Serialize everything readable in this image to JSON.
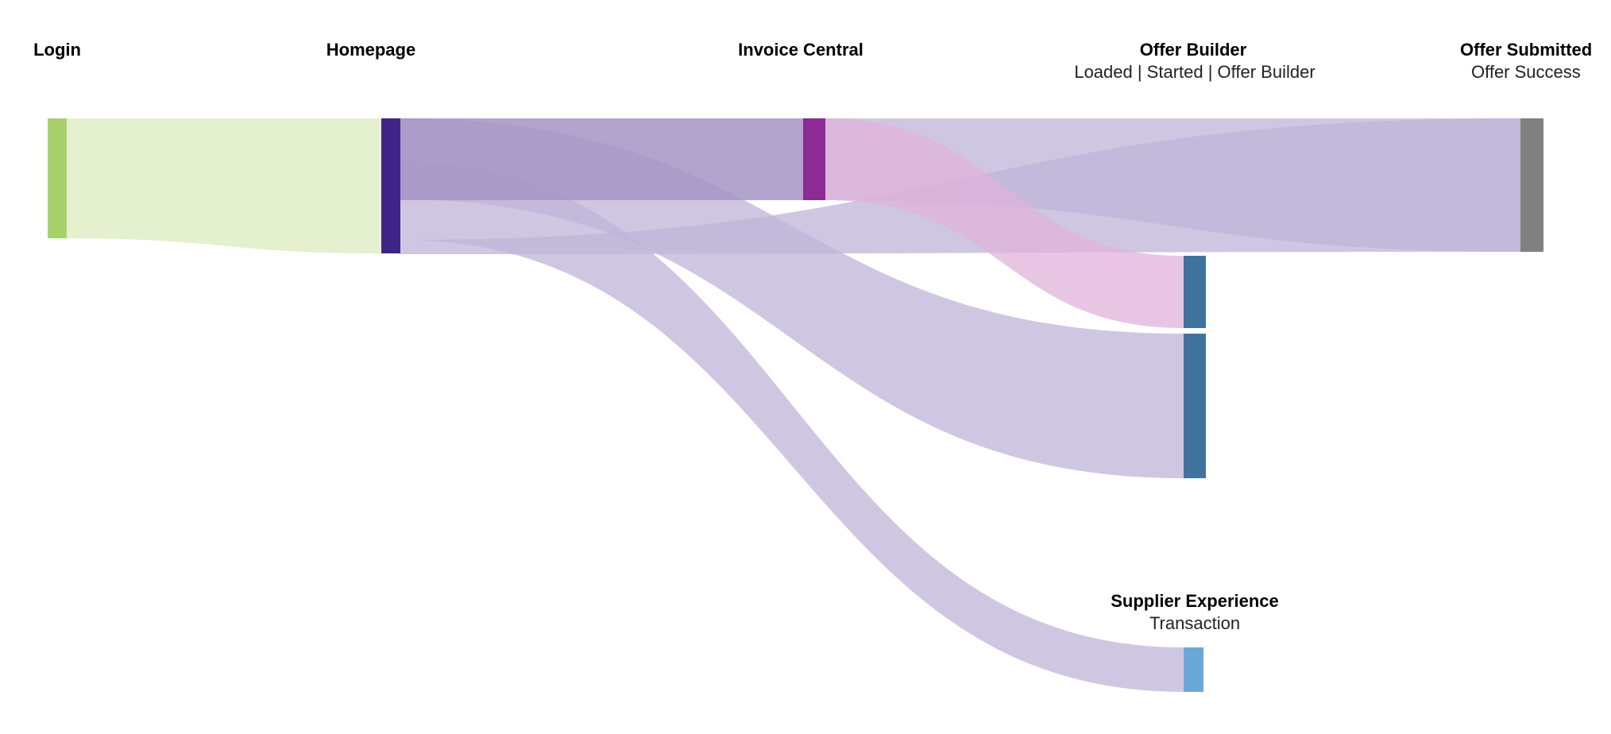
{
  "sankey": {
    "stages": [
      {
        "id": "login",
        "title": "Login",
        "subtitle": ""
      },
      {
        "id": "homepage",
        "title": "Homepage",
        "subtitle": ""
      },
      {
        "id": "invoice",
        "title": "Invoice Central",
        "subtitle": ""
      },
      {
        "id": "offer_builder",
        "title": "Offer Builder",
        "subtitle": "Loaded | Started | Offer Builder"
      },
      {
        "id": "offer_submitted",
        "title": "Offer Submitted",
        "subtitle": "Offer Success"
      },
      {
        "id": "supplier",
        "title": "Supplier Experience",
        "subtitle": "Transaction"
      }
    ],
    "nodes": [
      {
        "id": "login",
        "color": "#a9d16b",
        "value": 112
      },
      {
        "id": "homepage",
        "color": "#3f2488",
        "value": 127
      },
      {
        "id": "invoice",
        "color": "#8b2b93",
        "value": 76
      },
      {
        "id": "offer_builder_a",
        "color": "#3f729c",
        "value": 65
      },
      {
        "id": "offer_builder_b",
        "color": "#3f729c",
        "value": 135
      },
      {
        "id": "offer_submitted",
        "color": "#808080",
        "value": 125
      },
      {
        "id": "supplier",
        "color": "#69a8d8",
        "value": 41
      }
    ],
    "links": [
      {
        "source": "login",
        "target": "homepage",
        "value": 112,
        "color": "#dcebbd"
      },
      {
        "source": "homepage",
        "target": "invoice",
        "value": 76,
        "color": "#a494c4"
      },
      {
        "source": "homepage",
        "target": "offer_submitted",
        "value": 72,
        "color": "#bfb4d8"
      },
      {
        "source": "homepage",
        "target": "offer_builder_b",
        "value": 135,
        "color": "#bfb4d8"
      },
      {
        "source": "homepage",
        "target": "supplier",
        "value": 41,
        "color": "#bfb4d8"
      },
      {
        "source": "invoice",
        "target": "offer_submitted",
        "value": 53,
        "color": "#bfb4d8"
      },
      {
        "source": "invoice",
        "target": "offer_builder_a",
        "value": 65,
        "color": "#e0b3da"
      }
    ]
  }
}
